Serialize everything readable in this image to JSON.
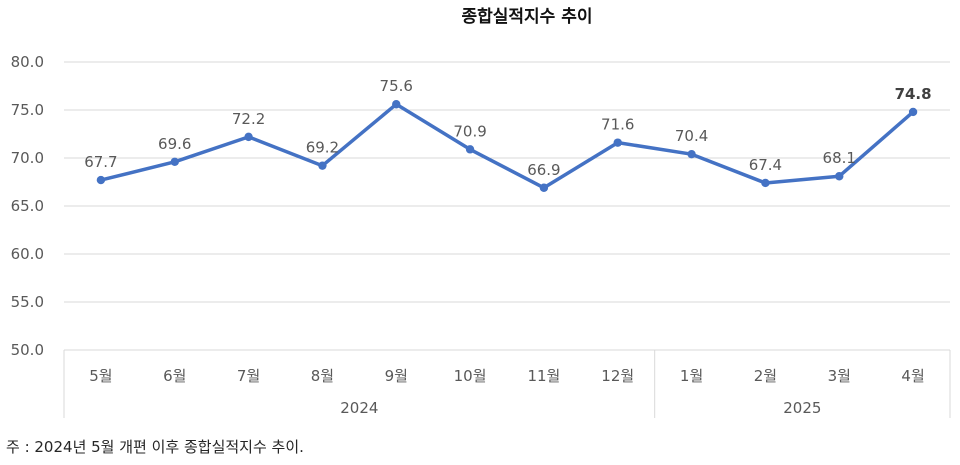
{
  "chart_data": {
    "type": "line",
    "title": "종합실적지수 추이",
    "categories": [
      "5월",
      "6월",
      "7월",
      "8월",
      "9월",
      "10월",
      "11월",
      "12월",
      "1월",
      "2월",
      "3월",
      "4월"
    ],
    "groups": [
      {
        "label": "2024",
        "count": 8
      },
      {
        "label": "2025",
        "count": 4
      }
    ],
    "series": [
      {
        "values": [
          67.7,
          69.6,
          72.2,
          69.2,
          75.6,
          70.9,
          66.9,
          71.6,
          70.4,
          67.4,
          68.1,
          74.8
        ]
      }
    ],
    "data_labels": [
      "67.7",
      "69.6",
      "72.2",
      "69.2",
      "75.6",
      "70.9",
      "66.9",
      "71.6",
      "70.4",
      "67.4",
      "68.1",
      "74.8"
    ],
    "ylim": [
      50.0,
      80.0
    ],
    "yticks": [
      "50.0",
      "55.0",
      "60.0",
      "65.0",
      "70.0",
      "75.0",
      "80.0"
    ],
    "grid": true,
    "line_color": "#4472C4",
    "grid_color": "#D9D9D9",
    "highlight_last": true
  },
  "note": "주 : 2024년 5월 개편 이후 종합실적지수 추이."
}
